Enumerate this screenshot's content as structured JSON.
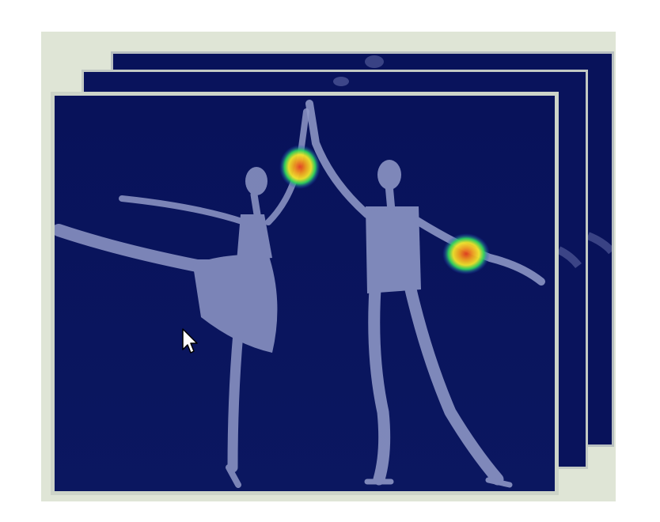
{
  "figure": {
    "subject": "ballet-duet-pose-heatmap-stack",
    "frame_count": 3,
    "colors": {
      "panel_background": "#dfe5d6",
      "frame_fill": "#08125a",
      "frame_border": "#cdd4c8",
      "figure_tint": "#8f98c7",
      "heatmap_hot": "#e8421e",
      "heatmap_warm": "#f2e62a",
      "heatmap_cool": "#2fd35c"
    },
    "heatmap_spots": [
      {
        "joint": "raised-hands",
        "intensity": "high"
      },
      {
        "joint": "partner-left-elbow",
        "intensity": "high"
      }
    ],
    "cursor": {
      "icon": "arrow-pointer-icon"
    }
  }
}
